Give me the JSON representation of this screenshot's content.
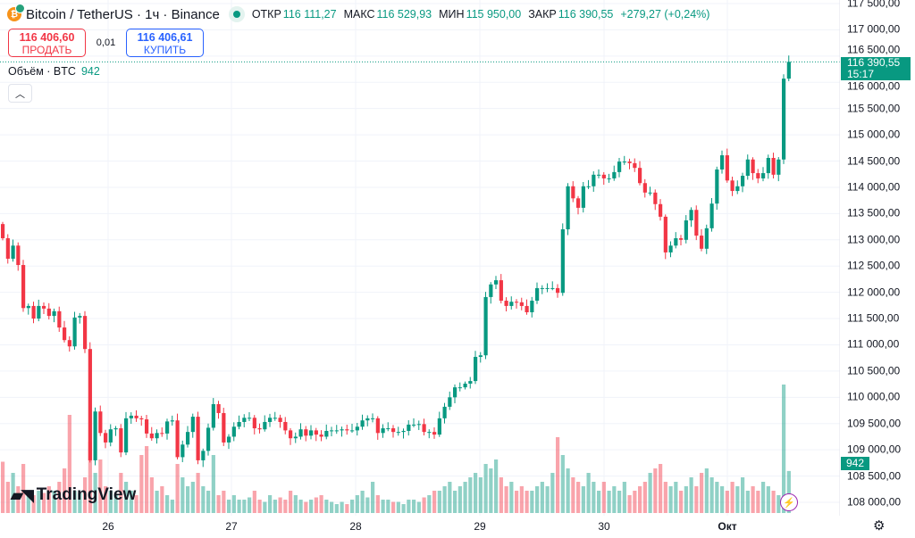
{
  "header": {
    "symbol": "Bitcoin / TetherUS · 1ч · Binance",
    "coin_icon": "bitcoin-icon",
    "open_label": "ОТКР",
    "open": "116 111,27",
    "high_label": "МАКС",
    "high": "116 529,93",
    "low_label": "МИН",
    "low": "115 950,00",
    "close_label": "ЗАКР",
    "close": "116 390,55",
    "change": "+279,27 (+0,24%)"
  },
  "trade": {
    "sell_price": "116 406,60",
    "sell_label": "ПРОДАТЬ",
    "spread": "0,01",
    "buy_price": "116 406,61",
    "buy_label": "КУПИТЬ"
  },
  "volume": {
    "label": "Объём · BTC",
    "value": "942"
  },
  "price_axis": [
    "117 500,00",
    "117 000,00",
    "116 500,00",
    "116 000,00",
    "115 500,00",
    "115 000,00",
    "114 500,00",
    "114 000,00",
    "113 500,00",
    "113 000,00",
    "112 500,00",
    "112 000,00",
    "111 500,00",
    "111 000,00",
    "110 500,00",
    "110 000,00",
    "109 500,00",
    "109 000,00",
    "108 500,00",
    "108 000,00"
  ],
  "current": {
    "price": "116 390,55",
    "countdown": "15:17"
  },
  "time_axis": [
    "26",
    "27",
    "28",
    "29",
    "30",
    "Окт"
  ],
  "brand": "TradingView",
  "colors": {
    "up": "#089981",
    "down": "#f23645"
  },
  "chart_data": {
    "type": "candlestick",
    "ylim": [
      108000,
      117500
    ],
    "first_open": 113300,
    "closes": [
      113030,
      112640,
      112890,
      112520,
      111700,
      111740,
      111500,
      111740,
      111690,
      111550,
      111640,
      111330,
      111090,
      110970,
      111520,
      111550,
      110920,
      108800,
      109730,
      109320,
      109140,
      109390,
      109410,
      108950,
      109600,
      109650,
      109600,
      109580,
      109310,
      109220,
      109320,
      109310,
      109540,
      109560,
      108860,
      109100,
      109340,
      109630,
      108800,
      108980,
      109420,
      109870,
      109700,
      109140,
      109250,
      109440,
      109530,
      109610,
      109610,
      109410,
      109390,
      109530,
      109610,
      109610,
      109530,
      109370,
      109220,
      109250,
      109390,
      109270,
      109370,
      109290,
      109250,
      109360,
      109370,
      109370,
      109390,
      109370,
      109370,
      109440,
      109560,
      109600,
      109600,
      109320,
      109410,
      109410,
      109340,
      109340,
      109360,
      109480,
      109480,
      109490,
      109340,
      109340,
      109290,
      109600,
      109820,
      110000,
      110190,
      110190,
      110260,
      110310,
      110770,
      110800,
      111910,
      112150,
      112230,
      111840,
      111740,
      111820,
      111810,
      111740,
      111620,
      111840,
      112080,
      112080,
      112080,
      112080,
      111990,
      113200,
      114020,
      113790,
      113610,
      114020,
      114020,
      114240,
      114240,
      114170,
      114170,
      114290,
      114490,
      114490,
      114460,
      114370,
      114080,
      113900,
      113900,
      113680,
      113440,
      112760,
      112890,
      113030,
      113000,
      113370,
      113570,
      113080,
      112830,
      113220,
      113690,
      114340,
      114610,
      114130,
      113930,
      114020,
      114220,
      114530,
      114270,
      114170,
      114270,
      114560,
      114240,
      114530,
      116070,
      116390
    ],
    "volumes": [
      1150,
      700,
      900,
      600,
      1100,
      500,
      400,
      500,
      450,
      600,
      500,
      700,
      1000,
      2200,
      500,
      450,
      800,
      1600,
      900,
      1200,
      600,
      500,
      400,
      900,
      700,
      500,
      400,
      1300,
      1500,
      800,
      500,
      600,
      400,
      300,
      1100,
      800,
      600,
      700,
      900,
      600,
      500,
      1300,
      400,
      500,
      300,
      400,
      300,
      300,
      350,
      500,
      300,
      250,
      400,
      300,
      350,
      300,
      500,
      400,
      300,
      250,
      300,
      350,
      400,
      300,
      250,
      200,
      250,
      200,
      300,
      400,
      500,
      350,
      700,
      400,
      300,
      300,
      250,
      250,
      200,
      300,
      300,
      250,
      350,
      400,
      500,
      500,
      600,
      700,
      500,
      600,
      700,
      800,
      900,
      800,
      1100,
      1000,
      1200,
      800,
      600,
      700,
      500,
      600,
      500,
      500,
      600,
      700,
      600,
      900,
      1700,
      1300,
      1000,
      800,
      700,
      600,
      900,
      700,
      500,
      700,
      500,
      600,
      500,
      700,
      400,
      500,
      600,
      700,
      900,
      1000,
      1100,
      700,
      600,
      700,
      500,
      600,
      800,
      600,
      900,
      1000,
      800,
      700,
      600,
      500,
      700,
      600,
      800,
      500,
      600,
      500,
      700,
      600,
      500,
      400,
      2880,
      942
    ]
  }
}
